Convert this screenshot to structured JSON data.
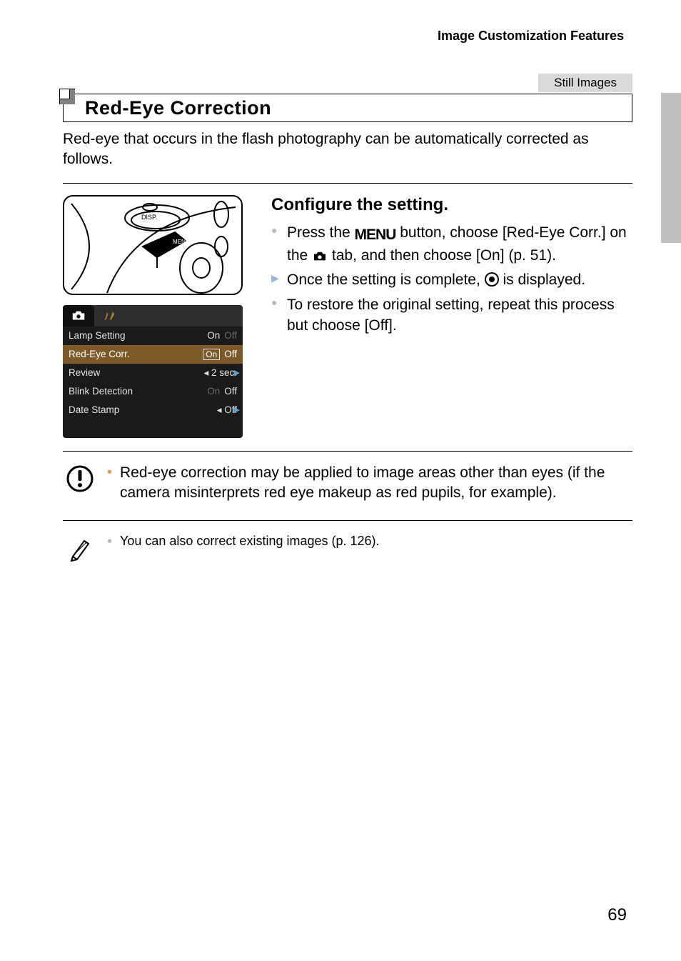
{
  "breadcrumb": "Image Customization Features",
  "mode_tag": "Still Images",
  "section_title": "Red-Eye Correction",
  "intro": "Red-eye that occurs in the flash photography can be automatically corrected as follows.",
  "step_title": "Configure the setting.",
  "bullets": {
    "b1a": "Press the ",
    "b1b": " button, choose [Red-Eye Corr.] on the ",
    "b1c": " tab, and then choose [On] (p. 51).",
    "b2a": "Once the setting is complete, ",
    "b2b": " is displayed.",
    "b3": "To restore the original setting, repeat this process but choose [Off]."
  },
  "menu_word": "MENU",
  "menu": {
    "rows": [
      {
        "label": "Lamp Setting",
        "val_a": "On",
        "val_b": "Off",
        "dim_b": true,
        "arrow": false,
        "sel": false,
        "box": false
      },
      {
        "label": "Red-Eye Corr.",
        "val_a": "On",
        "val_b": "Off",
        "dim_b": false,
        "arrow": false,
        "sel": true,
        "box": true
      },
      {
        "label": "Review",
        "val_a": "◂ 2 sec.",
        "val_b": "",
        "dim_b": false,
        "arrow": true,
        "sel": false,
        "box": false
      },
      {
        "label": "Blink Detection",
        "val_a": "On",
        "val_b": "Off",
        "dim_a": true,
        "arrow": false,
        "sel": false,
        "box": false
      },
      {
        "label": "Date Stamp",
        "val_a": "◂ Off",
        "val_b": "",
        "dim_b": false,
        "arrow": true,
        "sel": false,
        "box": false
      }
    ]
  },
  "caution_note": "Red-eye correction may be applied to image areas other than eyes (if the camera misinterprets red eye makeup as red pupils, for example).",
  "tip_note": "You can also correct existing images (p. 126).",
  "page_number": "69"
}
